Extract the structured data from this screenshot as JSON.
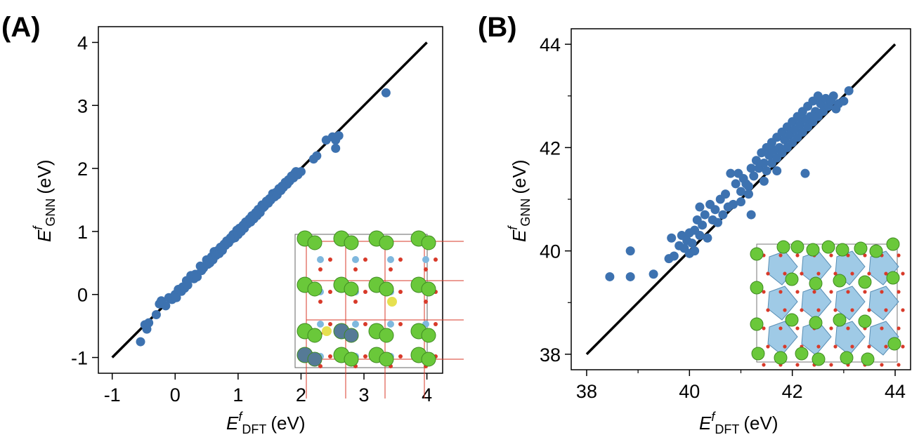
{
  "colors": {
    "points": "#3d72b0",
    "fit_line": "#000000",
    "inset_cation_a": "#6ac83a",
    "inset_oxygen": "#d83a2a",
    "inset_cation_b": "#7fb8de",
    "inset_dopant_a": "#557a96",
    "inset_dopant_b": "#e6e050"
  },
  "chart_data": [
    {
      "panel_label": "(A)",
      "type": "scatter",
      "xlabel": {
        "symbol": "E",
        "superscript": "f",
        "subscript": "DFT",
        "unit": "(eV)"
      },
      "ylabel": {
        "symbol": "E",
        "superscript": "f",
        "subscript": "GNN",
        "unit": "(eV)"
      },
      "xlim": [
        -1.22,
        4.25
      ],
      "ylim": [
        -1.25,
        4.25
      ],
      "xticks": [
        -1,
        0,
        1,
        2,
        3,
        4
      ],
      "yticks": [
        -1,
        0,
        1,
        2,
        3,
        4
      ],
      "xtick_labels": [
        "-1",
        "0",
        "1",
        "2",
        "3",
        "4"
      ],
      "ytick_labels": [
        "-1",
        "0",
        "1",
        "2",
        "3",
        "4"
      ],
      "minor_ticks": [],
      "fit_line": {
        "from": [
          -1,
          -1
        ],
        "to": [
          4,
          4
        ]
      },
      "inset": "cubic perovskite supercell structure (green, red, light-blue atoms with grey and yellow dopants)",
      "points": [
        [
          -0.55,
          -0.75
        ],
        [
          -0.45,
          -0.55
        ],
        [
          -0.48,
          -0.48
        ],
        [
          -0.42,
          -0.45
        ],
        [
          -0.3,
          -0.32
        ],
        [
          -0.25,
          -0.15
        ],
        [
          -0.22,
          -0.1
        ],
        [
          -0.15,
          -0.18
        ],
        [
          -0.1,
          -0.05
        ],
        [
          -0.05,
          -0.08
        ],
        [
          0.0,
          0.0
        ],
        [
          0.02,
          -0.05
        ],
        [
          0.05,
          0.08
        ],
        [
          0.1,
          0.05
        ],
        [
          0.12,
          0.12
        ],
        [
          0.15,
          0.1
        ],
        [
          0.18,
          0.22
        ],
        [
          0.2,
          0.15
        ],
        [
          0.25,
          0.3
        ],
        [
          0.3,
          0.25
        ],
        [
          0.32,
          0.32
        ],
        [
          0.35,
          0.28
        ],
        [
          0.4,
          0.45
        ],
        [
          0.42,
          0.38
        ],
        [
          0.45,
          0.42
        ],
        [
          0.5,
          0.55
        ],
        [
          0.52,
          0.48
        ],
        [
          0.55,
          0.5
        ],
        [
          0.58,
          0.6
        ],
        [
          0.6,
          0.55
        ],
        [
          0.62,
          0.68
        ],
        [
          0.65,
          0.62
        ],
        [
          0.68,
          0.7
        ],
        [
          0.7,
          0.65
        ],
        [
          0.72,
          0.75
        ],
        [
          0.75,
          0.7
        ],
        [
          0.78,
          0.8
        ],
        [
          0.8,
          0.78
        ],
        [
          0.82,
          0.85
        ],
        [
          0.85,
          0.82
        ],
        [
          0.88,
          0.9
        ],
        [
          0.9,
          0.88
        ],
        [
          0.92,
          0.95
        ],
        [
          0.95,
          0.9
        ],
        [
          0.98,
          1.02
        ],
        [
          1.0,
          0.95
        ],
        [
          1.02,
          1.05
        ],
        [
          1.05,
          1.0
        ],
        [
          1.08,
          1.1
        ],
        [
          1.1,
          1.05
        ],
        [
          1.12,
          1.15
        ],
        [
          1.15,
          1.12
        ],
        [
          1.18,
          1.2
        ],
        [
          1.2,
          1.15
        ],
        [
          1.22,
          1.25
        ],
        [
          1.25,
          1.2
        ],
        [
          1.28,
          1.3
        ],
        [
          1.3,
          1.25
        ],
        [
          1.32,
          1.35
        ],
        [
          1.35,
          1.3
        ],
        [
          1.38,
          1.42
        ],
        [
          1.4,
          1.38
        ],
        [
          1.42,
          1.4
        ],
        [
          1.45,
          1.48
        ],
        [
          1.48,
          1.45
        ],
        [
          1.5,
          1.52
        ],
        [
          1.52,
          1.5
        ],
        [
          1.55,
          1.6
        ],
        [
          1.58,
          1.55
        ],
        [
          1.6,
          1.62
        ],
        [
          1.62,
          1.58
        ],
        [
          1.65,
          1.68
        ],
        [
          1.68,
          1.65
        ],
        [
          1.7,
          1.72
        ],
        [
          1.72,
          1.7
        ],
        [
          1.75,
          1.78
        ],
        [
          1.78,
          1.75
        ],
        [
          1.8,
          1.82
        ],
        [
          1.82,
          1.8
        ],
        [
          1.85,
          1.88
        ],
        [
          1.88,
          1.85
        ],
        [
          1.9,
          1.92
        ],
        [
          1.92,
          1.95
        ],
        [
          1.95,
          1.9
        ],
        [
          2.0,
          1.95
        ],
        [
          2.2,
          2.15
        ],
        [
          2.25,
          2.2
        ],
        [
          2.4,
          2.45
        ],
        [
          2.5,
          2.5
        ],
        [
          2.55,
          2.45
        ],
        [
          2.55,
          2.32
        ],
        [
          2.6,
          2.52
        ],
        [
          3.35,
          3.2
        ]
      ]
    },
    {
      "panel_label": "(B)",
      "type": "scatter",
      "xlabel": {
        "symbol": "E",
        "superscript": "f",
        "subscript": "DFT",
        "unit": "(eV)"
      },
      "ylabel": {
        "symbol": "E",
        "superscript": "f",
        "subscript": "GNN",
        "unit": "(eV)"
      },
      "xlim": [
        37.7,
        44.3
      ],
      "ylim": [
        37.7,
        44.3
      ],
      "xticks": [
        38,
        40,
        42,
        44
      ],
      "yticks": [
        38,
        40,
        42,
        44
      ],
      "xtick_labels": [
        "38",
        "40",
        "42",
        "44"
      ],
      "ytick_labels": [
        "38",
        "40",
        "42",
        "44"
      ],
      "minor_ticks": [
        39,
        41,
        43
      ],
      "fit_line": {
        "from": [
          38,
          38
        ],
        "to": [
          44,
          44
        ]
      },
      "inset": "perovskite-type structure with blue polyhedra, green and red atoms",
      "points": [
        [
          38.45,
          39.5
        ],
        [
          38.85,
          39.5
        ],
        [
          38.85,
          40.0
        ],
        [
          39.3,
          39.55
        ],
        [
          39.6,
          39.85
        ],
        [
          39.65,
          40.25
        ],
        [
          39.7,
          39.9
        ],
        [
          39.8,
          40.1
        ],
        [
          39.85,
          40.3
        ],
        [
          39.9,
          40.05
        ],
        [
          39.95,
          40.2
        ],
        [
          40.0,
          39.95
        ],
        [
          40.0,
          40.35
        ],
        [
          40.05,
          40.15
        ],
        [
          40.1,
          40.4
        ],
        [
          40.1,
          40.0
        ],
        [
          40.15,
          40.6
        ],
        [
          40.2,
          40.3
        ],
        [
          40.2,
          40.85
        ],
        [
          40.25,
          40.5
        ],
        [
          40.3,
          40.7
        ],
        [
          40.35,
          40.25
        ],
        [
          40.4,
          40.9
        ],
        [
          40.45,
          40.6
        ],
        [
          40.5,
          40.8
        ],
        [
          40.55,
          40.55
        ],
        [
          40.6,
          41.0
        ],
        [
          40.65,
          40.7
        ],
        [
          40.7,
          41.1
        ],
        [
          40.75,
          40.85
        ],
        [
          40.8,
          41.5
        ],
        [
          40.85,
          40.9
        ],
        [
          40.9,
          41.3
        ],
        [
          40.95,
          41.5
        ],
        [
          41.0,
          41.15
        ],
        [
          41.05,
          41.4
        ],
        [
          41.1,
          41.3
        ],
        [
          41.15,
          41.25
        ],
        [
          41.2,
          41.6
        ],
        [
          41.25,
          41.45
        ],
        [
          41.3,
          41.75
        ],
        [
          41.35,
          41.6
        ],
        [
          41.4,
          41.9
        ],
        [
          41.45,
          41.7
        ],
        [
          41.5,
          41.55
        ],
        [
          41.5,
          42.0
        ],
        [
          41.55,
          41.85
        ],
        [
          41.6,
          41.7
        ],
        [
          41.6,
          42.1
        ],
        [
          41.65,
          41.95
        ],
        [
          41.7,
          42.2
        ],
        [
          41.7,
          41.8
        ],
        [
          41.75,
          42.0
        ],
        [
          41.8,
          42.3
        ],
        [
          41.8,
          41.9
        ],
        [
          41.85,
          42.15
        ],
        [
          41.9,
          42.4
        ],
        [
          41.9,
          42.0
        ],
        [
          41.95,
          42.25
        ],
        [
          42.0,
          42.5
        ],
        [
          42.0,
          42.1
        ],
        [
          42.05,
          42.35
        ],
        [
          42.1,
          42.6
        ],
        [
          42.1,
          42.2
        ],
        [
          42.15,
          42.45
        ],
        [
          42.2,
          42.7
        ],
        [
          42.2,
          42.3
        ],
        [
          42.25,
          42.55
        ],
        [
          42.3,
          42.8
        ],
        [
          42.3,
          42.4
        ],
        [
          42.35,
          42.6
        ],
        [
          42.4,
          42.9
        ],
        [
          42.4,
          42.5
        ],
        [
          42.45,
          42.7
        ],
        [
          42.5,
          43.0
        ],
        [
          42.5,
          42.6
        ],
        [
          42.55,
          42.85
        ],
        [
          42.6,
          42.7
        ],
        [
          42.65,
          42.95
        ],
        [
          42.7,
          42.8
        ],
        [
          42.75,
          42.9
        ],
        [
          42.8,
          43.0
        ],
        [
          42.85,
          42.75
        ],
        [
          42.9,
          42.85
        ],
        [
          43.0,
          42.9
        ],
        [
          43.1,
          43.1
        ],
        [
          41.0,
          40.95
        ],
        [
          41.2,
          40.7
        ],
        [
          41.7,
          41.55
        ],
        [
          42.25,
          41.5
        ],
        [
          41.15,
          41.1
        ],
        [
          41.45,
          41.35
        ]
      ]
    }
  ]
}
